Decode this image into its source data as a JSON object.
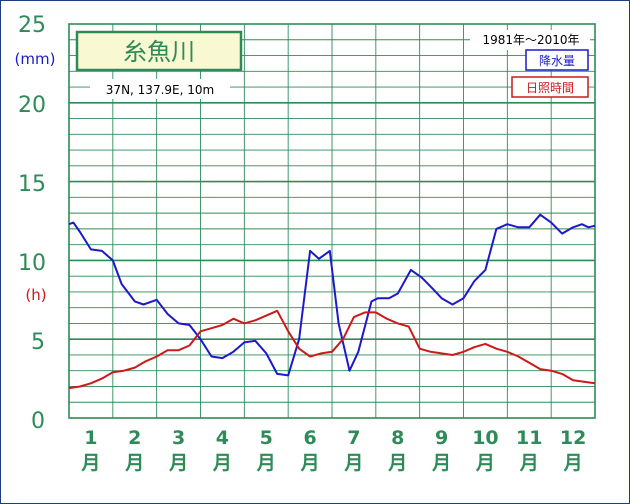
{
  "chart_data": {
    "type": "line",
    "title": "糸魚川",
    "location": "37N,  137.9E,  10m",
    "period": "1981年〜2010年",
    "y_ticks": [
      "0",
      "5",
      "10",
      "15",
      "20",
      "25"
    ],
    "unit_precip": "(mm)",
    "unit_sunshine": "(h)",
    "months": [
      {
        "num": "1",
        "suffix": "月"
      },
      {
        "num": "2",
        "suffix": "月"
      },
      {
        "num": "3",
        "suffix": "月"
      },
      {
        "num": "4",
        "suffix": "月"
      },
      {
        "num": "5",
        "suffix": "月"
      },
      {
        "num": "6",
        "suffix": "月"
      },
      {
        "num": "7",
        "suffix": "月"
      },
      {
        "num": "8",
        "suffix": "月"
      },
      {
        "num": "9",
        "suffix": "月"
      },
      {
        "num": "10",
        "suffix": "月"
      },
      {
        "num": "11",
        "suffix": "月"
      },
      {
        "num": "12",
        "suffix": "月"
      }
    ],
    "ylim": [
      0,
      25
    ],
    "xlim": [
      0.5,
      12.5
    ],
    "grid": true,
    "series": [
      {
        "name": "降水量",
        "color": "#1a1acc",
        "x": [
          0.5,
          0.6,
          0.75,
          1.0,
          1.25,
          1.5,
          1.7,
          2.0,
          2.2,
          2.5,
          2.75,
          3.0,
          3.25,
          3.5,
          3.75,
          4.0,
          4.25,
          4.5,
          4.75,
          5.0,
          5.25,
          5.5,
          5.75,
          6.0,
          6.2,
          6.45,
          6.65,
          6.9,
          7.1,
          7.4,
          7.55,
          7.8,
          8.0,
          8.3,
          8.55,
          8.8,
          9.0,
          9.25,
          9.5,
          9.75,
          10.0,
          10.25,
          10.5,
          10.75,
          11.0,
          11.25,
          11.5,
          11.75,
          12.0,
          12.2,
          12.35,
          12.5
        ],
        "y": [
          12.3,
          12.4,
          11.8,
          10.7,
          10.6,
          10.0,
          8.5,
          7.4,
          7.2,
          7.5,
          6.6,
          6.0,
          5.9,
          5.0,
          3.9,
          3.8,
          4.2,
          4.8,
          4.9,
          4.1,
          2.8,
          2.7,
          5.0,
          10.6,
          10.1,
          10.6,
          6.0,
          3.0,
          4.2,
          7.4,
          7.6,
          7.6,
          7.9,
          9.4,
          8.9,
          8.2,
          7.6,
          7.2,
          7.6,
          8.7,
          9.4,
          12.0,
          12.3,
          12.1,
          12.1,
          12.9,
          12.4,
          11.7,
          12.1,
          12.3,
          12.1,
          12.2
        ]
      },
      {
        "name": "日照時間",
        "color": "#cc1a1a",
        "x": [
          0.5,
          0.75,
          1.0,
          1.25,
          1.5,
          1.75,
          2.0,
          2.25,
          2.5,
          2.75,
          3.0,
          3.25,
          3.5,
          3.75,
          4.0,
          4.25,
          4.5,
          4.75,
          5.0,
          5.25,
          5.5,
          5.75,
          6.0,
          6.25,
          6.5,
          6.75,
          7.0,
          7.25,
          7.5,
          7.75,
          8.0,
          8.25,
          8.5,
          8.75,
          9.0,
          9.25,
          9.5,
          9.75,
          10.0,
          10.25,
          10.5,
          10.75,
          11.0,
          11.25,
          11.5,
          11.75,
          12.0,
          12.25,
          12.5
        ],
        "y": [
          1.9,
          2.0,
          2.2,
          2.5,
          2.9,
          3.0,
          3.2,
          3.6,
          3.9,
          4.3,
          4.3,
          4.6,
          5.5,
          5.7,
          5.9,
          6.3,
          6.0,
          6.2,
          6.5,
          6.8,
          5.5,
          4.4,
          3.9,
          4.1,
          4.2,
          5.0,
          6.4,
          6.7,
          6.7,
          6.3,
          6.0,
          5.8,
          4.4,
          4.2,
          4.1,
          4.0,
          4.2,
          4.5,
          4.7,
          4.4,
          4.2,
          3.9,
          3.5,
          3.1,
          3.0,
          2.8,
          2.4,
          2.3,
          2.2
        ]
      }
    ]
  }
}
